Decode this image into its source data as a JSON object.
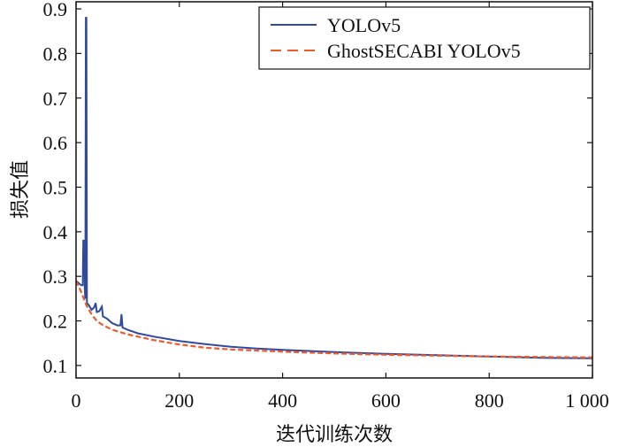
{
  "chart_data": {
    "type": "line",
    "title": "",
    "xlabel": "迭代训练次数",
    "ylabel": "损失值",
    "xlim": [
      0,
      1000
    ],
    "ylim": [
      0.072,
      0.916
    ],
    "xticks": [
      0,
      200,
      400,
      600,
      800,
      1000
    ],
    "xtick_labels": [
      "0",
      "200",
      "400",
      "600",
      "800",
      "1 000"
    ],
    "yticks": [
      0.1,
      0.2,
      0.3,
      0.4,
      0.5,
      0.6,
      0.7,
      0.8,
      0.9
    ],
    "ytick_labels": [
      "0.1",
      "0.2",
      "0.3",
      "0.4",
      "0.5",
      "0.6",
      "0.7",
      "0.8",
      "0.9"
    ],
    "grid": false,
    "legend_position": "top-right",
    "series": [
      {
        "name": "YOLOv5",
        "color": "#2f4a9e",
        "style": "solid",
        "points": [
          [
            0,
            0.29
          ],
          [
            5,
            0.285
          ],
          [
            10,
            0.28
          ],
          [
            13,
            0.28
          ],
          [
            14,
            0.38
          ],
          [
            16,
            0.38
          ],
          [
            17,
            0.27
          ],
          [
            18,
            0.25
          ],
          [
            19,
            0.88
          ],
          [
            20,
            0.88
          ],
          [
            21,
            0.24
          ],
          [
            25,
            0.235
          ],
          [
            30,
            0.225
          ],
          [
            35,
            0.23
          ],
          [
            38,
            0.24
          ],
          [
            40,
            0.22
          ],
          [
            45,
            0.222
          ],
          [
            50,
            0.232
          ],
          [
            52,
            0.21
          ],
          [
            60,
            0.205
          ],
          [
            70,
            0.195
          ],
          [
            80,
            0.19
          ],
          [
            86,
            0.19
          ],
          [
            88,
            0.215
          ],
          [
            90,
            0.185
          ],
          [
            100,
            0.18
          ],
          [
            120,
            0.172
          ],
          [
            150,
            0.165
          ],
          [
            200,
            0.155
          ],
          [
            250,
            0.148
          ],
          [
            300,
            0.142
          ],
          [
            350,
            0.138
          ],
          [
            400,
            0.135
          ],
          [
            500,
            0.13
          ],
          [
            600,
            0.126
          ],
          [
            700,
            0.123
          ],
          [
            800,
            0.12
          ],
          [
            900,
            0.117
          ],
          [
            1000,
            0.116
          ]
        ]
      },
      {
        "name": "GhostSECABI YOLOv5",
        "color": "#f05a2a",
        "style": "dashed",
        "points": [
          [
            0,
            0.29
          ],
          [
            10,
            0.265
          ],
          [
            20,
            0.235
          ],
          [
            30,
            0.215
          ],
          [
            40,
            0.2
          ],
          [
            50,
            0.192
          ],
          [
            70,
            0.18
          ],
          [
            100,
            0.17
          ],
          [
            150,
            0.157
          ],
          [
            200,
            0.147
          ],
          [
            250,
            0.14
          ],
          [
            300,
            0.136
          ],
          [
            400,
            0.131
          ],
          [
            500,
            0.127
          ],
          [
            600,
            0.124
          ],
          [
            700,
            0.122
          ],
          [
            800,
            0.12
          ],
          [
            900,
            0.119
          ],
          [
            1000,
            0.118
          ]
        ]
      }
    ]
  }
}
